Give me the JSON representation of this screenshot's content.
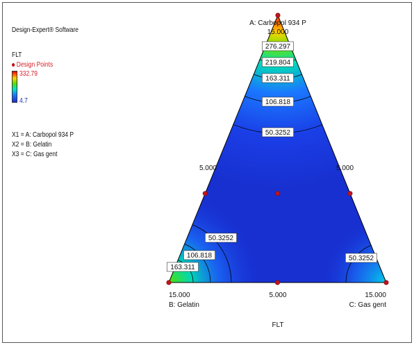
{
  "sidebar": {
    "software": "Design-Expert® Software",
    "response": "FLT",
    "design_points": "Design Points",
    "max_value": "332.79",
    "min_value": "4.7",
    "x1": "X1 = A: Carbopol 934 P",
    "x2": "X2 = B: Gelatin",
    "x3": "X3 = C: Gas gent"
  },
  "chart_data": {
    "type": "ternary-contour",
    "title": "FLT",
    "components": {
      "A": "A: Carbopol 934 P",
      "B": "B: Gelatin",
      "C": "C: Gas gent"
    },
    "vertex_labels": {
      "top": "15.000",
      "left": "15.000",
      "right": "15.000"
    },
    "mid_labels": {
      "left_edge": "5.000",
      "right_edge": "5.000",
      "bottom_edge": "5.000"
    },
    "contour_levels": [
      "276.297",
      "219.804",
      "163.311",
      "106.818",
      "50.3252"
    ],
    "bottom_left_contours": [
      "50.3252",
      "106.818",
      "163.311"
    ],
    "bottom_right_contours": [
      "50.3252"
    ],
    "color_scale": {
      "max": 332.79,
      "min": 4.7,
      "colors": [
        "#ff0000",
        "#ffd200",
        "#50e000",
        "#00e6c8",
        "#1a74ff",
        "#1a2fd0"
      ]
    },
    "design_points": [
      {
        "A": 15,
        "B": 0,
        "C": 0
      },
      {
        "A": 5,
        "B": 10,
        "C": 0
      },
      {
        "A": 5,
        "B": 0,
        "C": 10
      },
      {
        "A": 0,
        "B": 15,
        "C": 0
      },
      {
        "A": 0,
        "B": 0,
        "C": 15
      },
      {
        "A": 0,
        "B": 7.5,
        "C": 7.5
      },
      {
        "A": 5,
        "B": 5,
        "C": 5
      }
    ]
  }
}
